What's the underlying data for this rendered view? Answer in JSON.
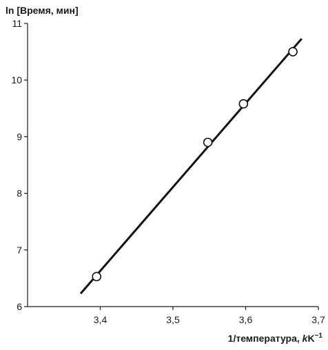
{
  "chart_data": {
    "type": "scatter",
    "title": "",
    "ylabel": "ln [Время, мин]",
    "xlabel_prefix": "1/температура, ",
    "xlabel_k": "k",
    "xlabel_unit": "K",
    "xlabel_exp": "−1",
    "xlim": [
      3.3,
      3.7
    ],
    "ylim": [
      6,
      11
    ],
    "x_ticks": [
      3.4,
      3.5,
      3.6,
      3.7
    ],
    "x_tick_labels": [
      "3,4",
      "3,5",
      "3,6",
      "3,7"
    ],
    "y_ticks": [
      6,
      7,
      8,
      9,
      10,
      11
    ],
    "y_tick_labels": [
      "6",
      "7",
      "8",
      "9",
      "10",
      "11"
    ],
    "grid": false,
    "legend": "none",
    "series": [
      {
        "points": [
          {
            "x": 3.395,
            "y": 6.53
          },
          {
            "x": 3.548,
            "y": 8.9
          },
          {
            "x": 3.597,
            "y": 9.58
          },
          {
            "x": 3.665,
            "y": 10.5
          }
        ],
        "marker": "open-circle"
      }
    ],
    "fit_line": {
      "x": [
        3.373,
        3.677
      ],
      "y": [
        6.23,
        10.73
      ]
    },
    "colors": {
      "axis": "#1a1a1a",
      "line": "#111111",
      "marker_fill": "#ffffff"
    }
  }
}
